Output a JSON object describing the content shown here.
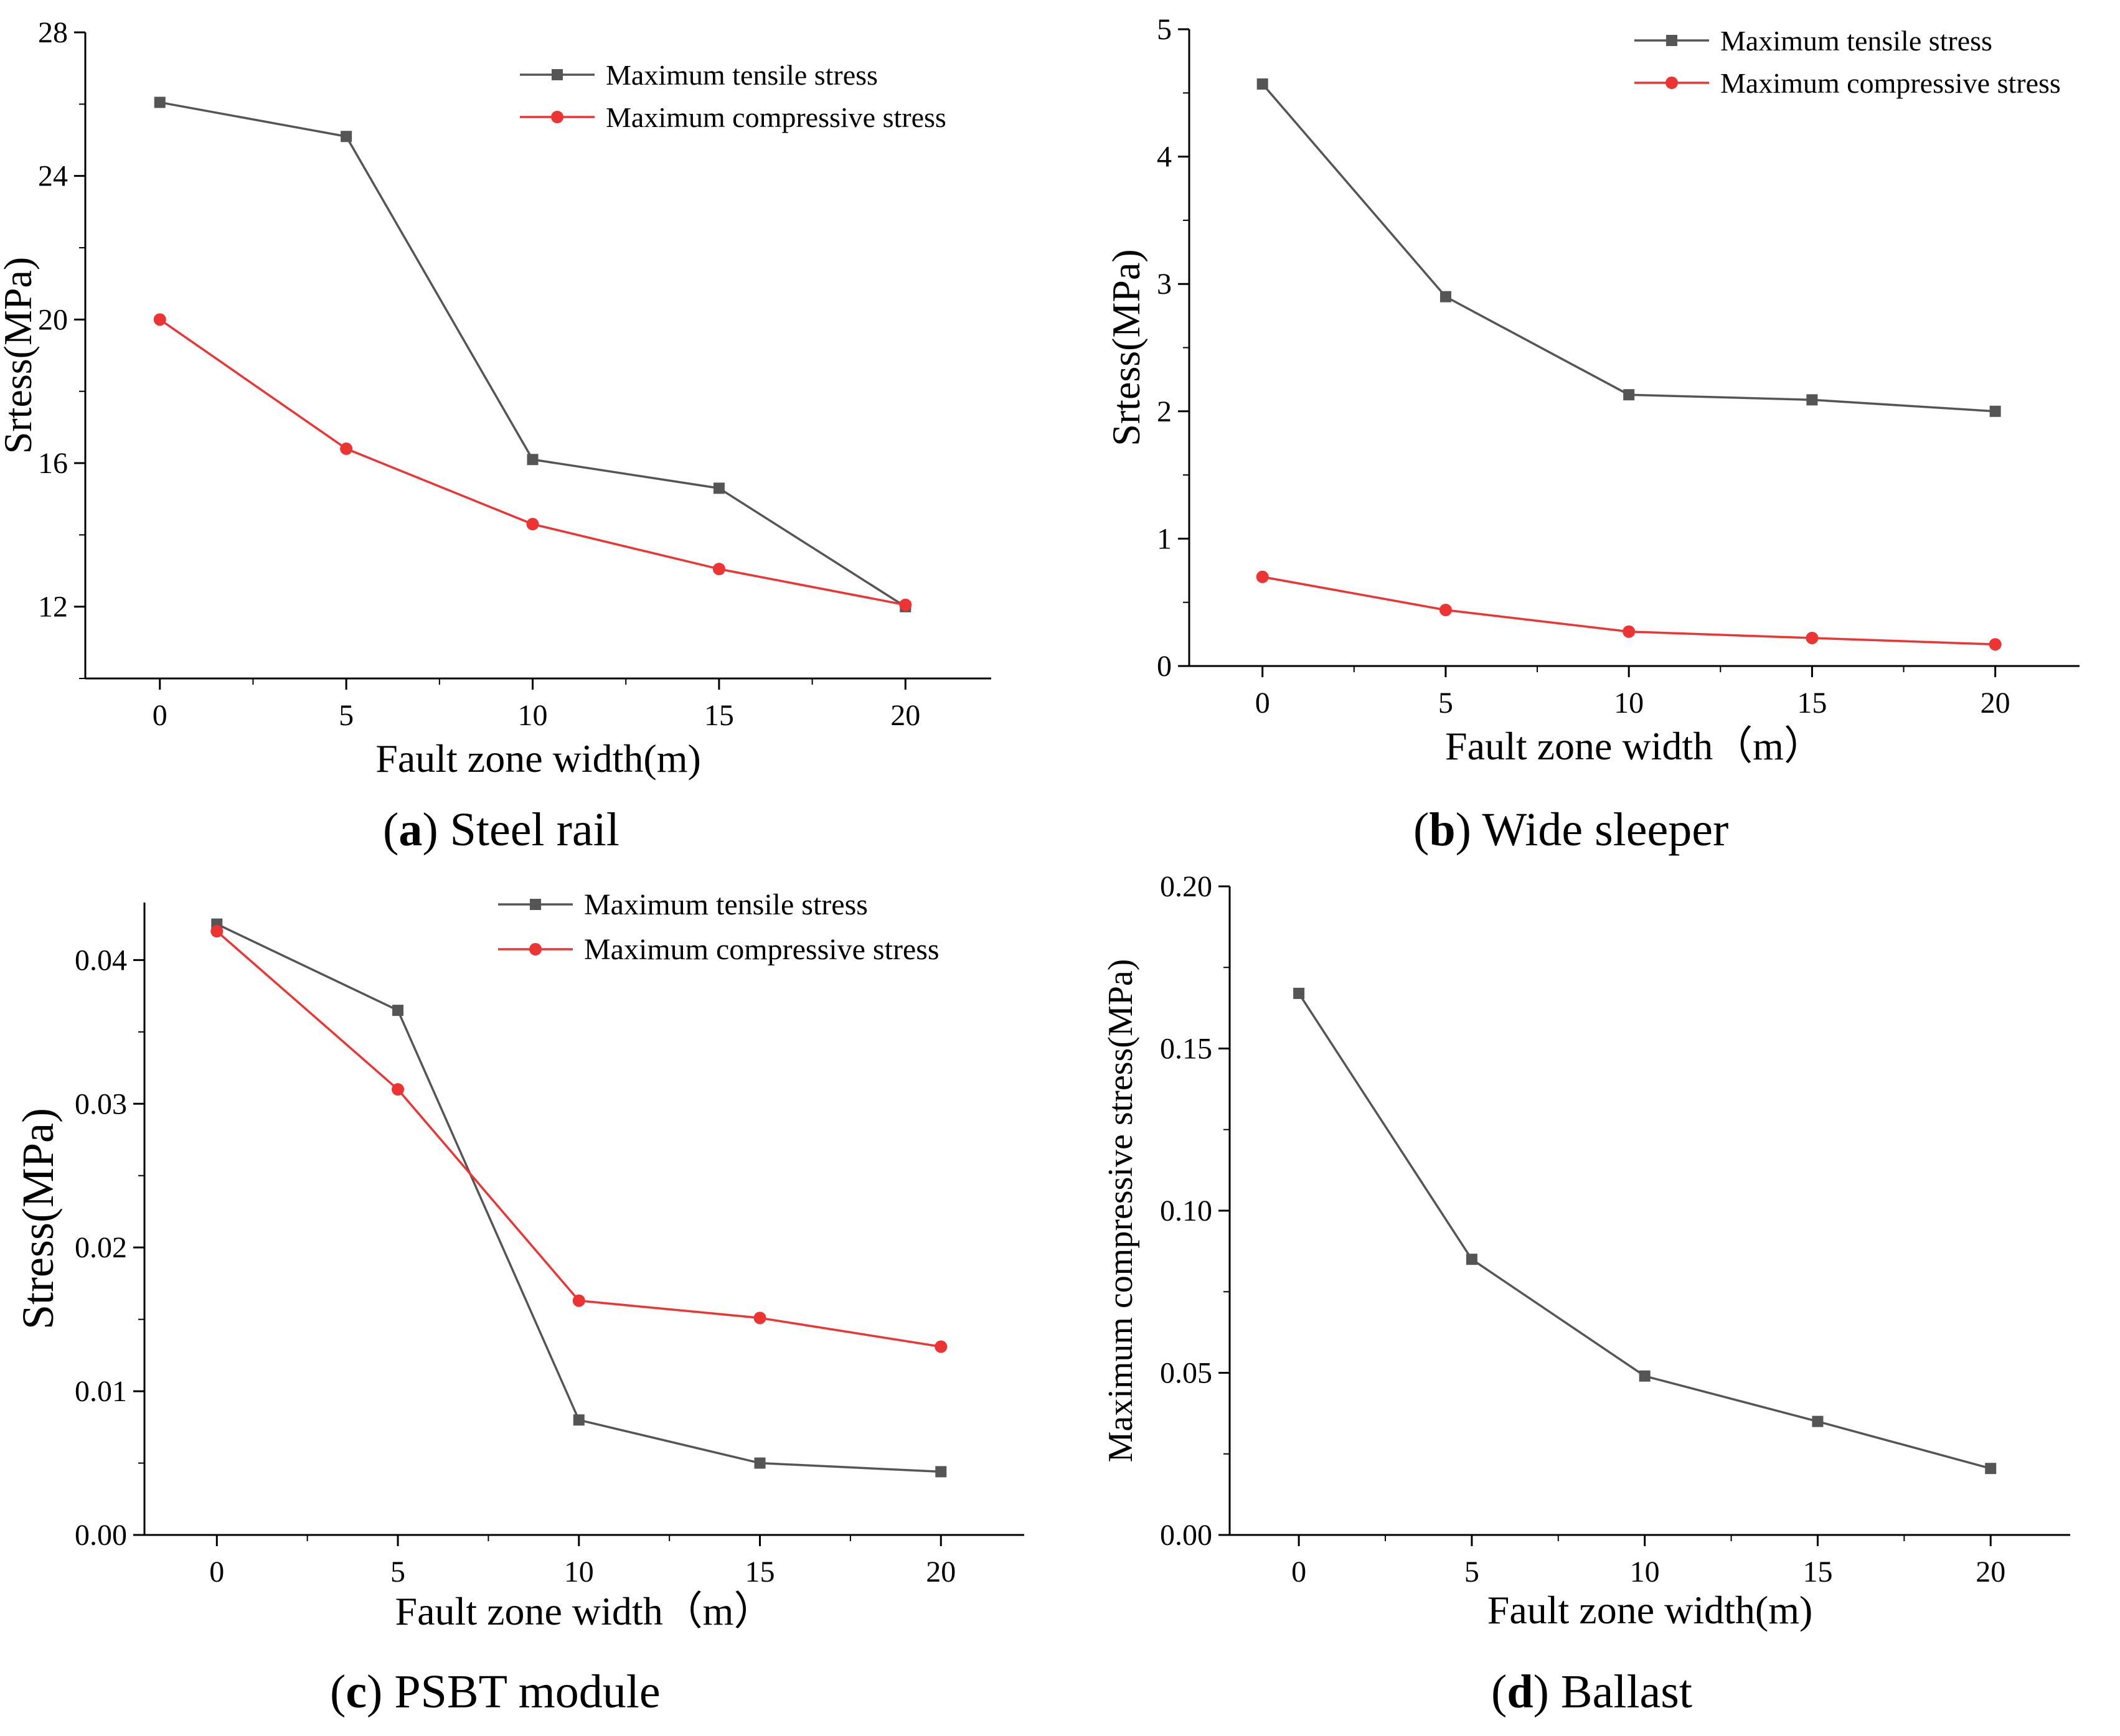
{
  "figure": {
    "panels": [
      {
        "label": "a",
        "caption": "Steel rail"
      },
      {
        "label": "b",
        "caption": "Wide sleeper"
      },
      {
        "label": "c",
        "caption": "PSBT module"
      },
      {
        "label": "d",
        "caption": "Ballast"
      }
    ]
  },
  "colors": {
    "tensile": "#555555",
    "compressive": "#ee3333",
    "axis": "#000000"
  },
  "chart_data": [
    {
      "type": "line",
      "title": "(a) Steel rail",
      "xlabel": "Fault zone width(m)",
      "ylabel": "Srtess(MPa)",
      "x": [
        0,
        5,
        10,
        15,
        20
      ],
      "xticks": [
        "0",
        "5",
        "10",
        "15",
        "20"
      ],
      "yticks": [
        "12",
        "16",
        "20",
        "24",
        "28"
      ],
      "xlim": [
        -2,
        22.3
      ],
      "ylim": [
        10,
        28
      ],
      "legend": "top-right",
      "series": [
        {
          "name": "Maximum tensile stress",
          "marker": "square",
          "values": [
            26.05,
            25.1,
            16.1,
            15.3,
            12.0
          ]
        },
        {
          "name": "Maximum compressive stress",
          "marker": "circle",
          "values": [
            20.0,
            16.4,
            14.3,
            13.05,
            12.05
          ]
        }
      ]
    },
    {
      "type": "line",
      "title": "(b) Wide sleeper",
      "xlabel": "Fault zone width（m）",
      "ylabel": "Srtess(MPa)",
      "x": [
        0,
        5,
        10,
        15,
        20
      ],
      "xticks": [
        "0",
        "5",
        "10",
        "15",
        "20"
      ],
      "yticks": [
        "0",
        "1",
        "2",
        "3",
        "4",
        "5"
      ],
      "xlim": [
        -2,
        22.3
      ],
      "ylim": [
        0,
        5
      ],
      "legend": "top-right",
      "series": [
        {
          "name": "Maximum tensile stress",
          "marker": "square",
          "values": [
            4.57,
            2.9,
            2.13,
            2.09,
            2.0
          ]
        },
        {
          "name": "Maximum compressive stress",
          "marker": "circle",
          "values": [
            0.7,
            0.44,
            0.27,
            0.22,
            0.17
          ]
        }
      ]
    },
    {
      "type": "line",
      "title": "(c) PSBT module",
      "xlabel": "Fault zone width（m）",
      "ylabel": "Stress(MPa)",
      "x": [
        0,
        5,
        10,
        15,
        20
      ],
      "xticks": [
        "0",
        "5",
        "10",
        "15",
        "20"
      ],
      "yticks": [
        "0.00",
        "0.01",
        "0.02",
        "0.03",
        "0.04"
      ],
      "xlim": [
        -2,
        22.3
      ],
      "ylim": [
        0,
        0.044
      ],
      "legend": "top-right",
      "series": [
        {
          "name": "Maximum tensile stress",
          "marker": "square",
          "values": [
            0.0425,
            0.0365,
            0.008,
            0.005,
            0.0044
          ]
        },
        {
          "name": "Maximum compressive stress",
          "marker": "circle",
          "values": [
            0.042,
            0.031,
            0.0163,
            0.0151,
            0.0131
          ]
        }
      ]
    },
    {
      "type": "line",
      "title": "(d) Ballast",
      "xlabel": "Fault zone width(m)",
      "ylabel": "Maximum compressive stress(MPa)",
      "x": [
        0,
        5,
        10,
        15,
        20
      ],
      "xticks": [
        "0",
        "5",
        "10",
        "15",
        "20"
      ],
      "yticks": [
        "0.00",
        "0.05",
        "0.10",
        "0.15",
        "0.20"
      ],
      "xlim": [
        -2,
        22.3
      ],
      "ylim": [
        0,
        0.2
      ],
      "legend": "none",
      "series": [
        {
          "name": "Maximum compressive stress",
          "marker": "square",
          "values": [
            0.167,
            0.085,
            0.049,
            0.035,
            0.0205
          ]
        }
      ]
    }
  ]
}
